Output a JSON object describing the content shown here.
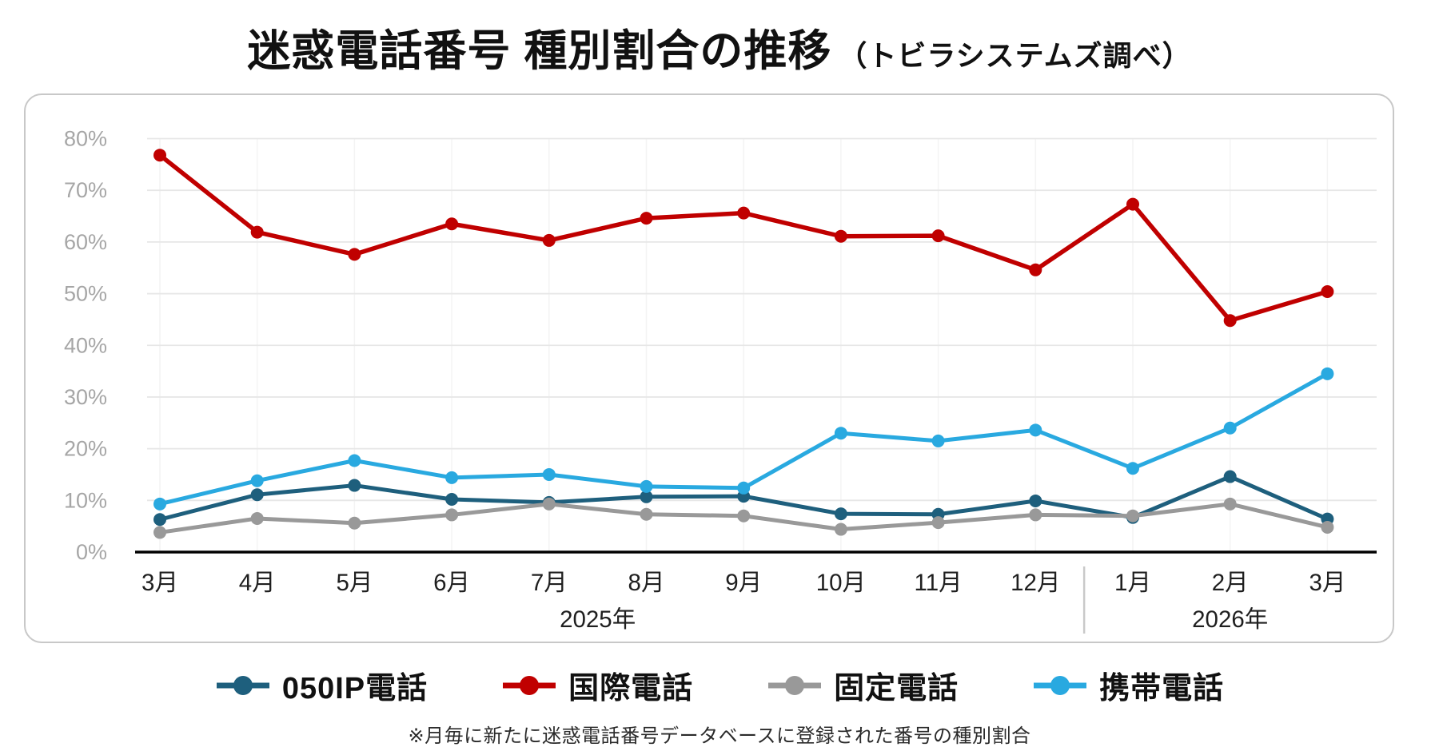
{
  "title": {
    "main": "迷惑電話番号 種別割合の推移",
    "suffix": "（トビラシステムズ調べ）"
  },
  "footer": {
    "note": "※月毎に新たに迷惑電話番号データベースに登録された番号の種別割合"
  },
  "colors": {
    "background": "#FFFFFF",
    "panel_border": "#C8C8C8",
    "grid_line": "#E7E7E7",
    "column_grid_line": "#F4F4F4",
    "axis_line": "#000000",
    "tick_label": "#A6A6A6",
    "month_label": "#1F1F1F",
    "year_label": "#1F1F1F",
    "year_divider": "#C9C9C9",
    "title_text": "#111111",
    "legend_text": "#111111",
    "note_text": "#2B2B2B"
  },
  "chart_data": {
    "type": "line",
    "title": "迷惑電話番号 種別割合の推移（トビラシステムズ調べ）",
    "categories": [
      "3月",
      "4月",
      "5月",
      "6月",
      "7月",
      "8月",
      "9月",
      "10月",
      "11月",
      "12月",
      "1月",
      "2月",
      "3月"
    ],
    "year_groups": [
      {
        "label": "2025年",
        "from": 0,
        "to": 9
      },
      {
        "label": "2026年",
        "from": 10,
        "to": 12
      }
    ],
    "series": [
      {
        "name": "050IP電話",
        "color": "#1E5F7D",
        "values": [
          6.3,
          11.1,
          12.9,
          10.2,
          9.6,
          10.7,
          10.8,
          7.4,
          7.3,
          9.9,
          6.7,
          14.6,
          6.4
        ]
      },
      {
        "name": "国際電話",
        "color": "#C00000",
        "values": [
          76.8,
          61.9,
          57.6,
          63.5,
          60.3,
          64.6,
          65.6,
          61.1,
          61.2,
          54.6,
          67.3,
          44.8,
          50.4
        ]
      },
      {
        "name": "固定電話",
        "color": "#999999",
        "values": [
          3.8,
          6.5,
          5.6,
          7.2,
          9.3,
          7.3,
          7.0,
          4.4,
          5.7,
          7.2,
          7.0,
          9.3,
          4.8
        ]
      },
      {
        "name": "携帯電話",
        "color": "#29A9E0",
        "values": [
          9.3,
          13.8,
          17.7,
          14.4,
          15.0,
          12.7,
          12.4,
          23.0,
          21.5,
          23.6,
          16.2,
          24.0,
          34.5
        ]
      }
    ],
    "ylim": [
      0,
      80
    ],
    "ytick_step": 10,
    "ytick_suffix": "%",
    "grid": true,
    "legend_position": "bottom",
    "unit": "%"
  }
}
